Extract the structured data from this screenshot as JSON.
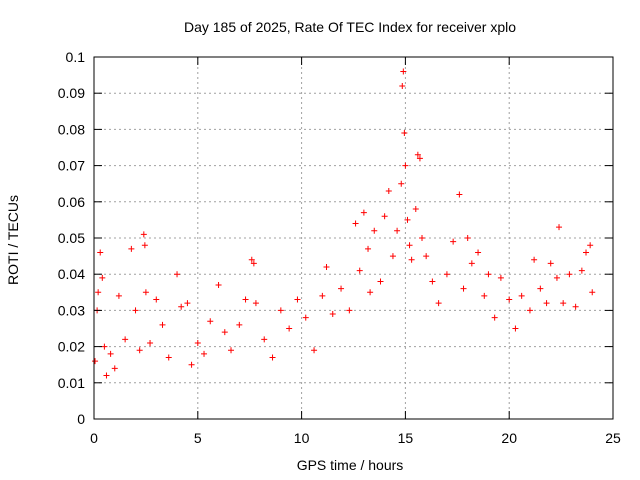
{
  "chart_data": {
    "type": "scatter",
    "title": "Day 185 of 2025, Rate Of TEC Index for receiver xplo",
    "xlabel": "GPS time / hours",
    "ylabel": "ROTI / TECUs",
    "xlim": [
      0,
      25
    ],
    "ylim": [
      0,
      0.1
    ],
    "xticks": [
      0,
      5,
      10,
      15,
      20,
      25
    ],
    "xtick_labels": [
      "0",
      "5",
      "10",
      "15",
      "20",
      "25"
    ],
    "yticks": [
      0,
      0.01,
      0.02,
      0.03,
      0.04,
      0.05,
      0.06,
      0.07,
      0.08,
      0.09,
      0.1
    ],
    "ytick_labels": [
      "0",
      "0.01",
      "0.02",
      "0.03",
      "0.04",
      "0.05",
      "0.06",
      "0.07",
      "0.08",
      "0.09",
      "0.1"
    ],
    "grid": true,
    "marker": "plus",
    "marker_color": "#ff0000",
    "series": [
      {
        "x": [
          0.05,
          0.15,
          0.2,
          0.3,
          0.4,
          0.5,
          0.6,
          0.8,
          1.0,
          1.2,
          1.5,
          1.8,
          2.0,
          2.2,
          2.4,
          2.45,
          2.5,
          2.7,
          3.0,
          3.3,
          3.6,
          4.0,
          4.2,
          4.5,
          4.7,
          5.0,
          5.3,
          5.6,
          6.0,
          6.3,
          6.6,
          7.0,
          7.3,
          7.6,
          7.7,
          7.8,
          8.2,
          8.6,
          9.0,
          9.4,
          9.8,
          10.2,
          10.6,
          11.0,
          11.2,
          11.5,
          11.9,
          12.3,
          12.6,
          12.8,
          13.0,
          13.2,
          13.3,
          13.5,
          13.8,
          14.0,
          14.2,
          14.4,
          14.6,
          14.8,
          14.85,
          14.9,
          14.95,
          15.0,
          15.1,
          15.2,
          15.3,
          15.5,
          15.6,
          15.7,
          15.8,
          16.0,
          16.3,
          16.6,
          17.0,
          17.3,
          17.6,
          17.8,
          18.0,
          18.2,
          18.5,
          18.8,
          19.0,
          19.3,
          19.6,
          20.0,
          20.3,
          20.6,
          21.0,
          21.2,
          21.5,
          21.8,
          22.0,
          22.3,
          22.4,
          22.6,
          22.9,
          23.2,
          23.5,
          23.7,
          23.9,
          24.0
        ],
        "y": [
          0.016,
          0.03,
          0.035,
          0.046,
          0.039,
          0.02,
          0.012,
          0.018,
          0.014,
          0.034,
          0.022,
          0.047,
          0.03,
          0.019,
          0.051,
          0.048,
          0.035,
          0.021,
          0.033,
          0.026,
          0.017,
          0.04,
          0.031,
          0.032,
          0.015,
          0.021,
          0.018,
          0.027,
          0.037,
          0.024,
          0.019,
          0.026,
          0.033,
          0.044,
          0.043,
          0.032,
          0.022,
          0.017,
          0.03,
          0.025,
          0.033,
          0.028,
          0.019,
          0.034,
          0.042,
          0.029,
          0.036,
          0.03,
          0.054,
          0.041,
          0.057,
          0.047,
          0.035,
          0.052,
          0.038,
          0.056,
          0.063,
          0.045,
          0.052,
          0.065,
          0.092,
          0.096,
          0.079,
          0.07,
          0.055,
          0.048,
          0.044,
          0.058,
          0.073,
          0.072,
          0.05,
          0.045,
          0.038,
          0.032,
          0.04,
          0.049,
          0.062,
          0.036,
          0.05,
          0.043,
          0.046,
          0.034,
          0.04,
          0.028,
          0.039,
          0.033,
          0.025,
          0.034,
          0.03,
          0.044,
          0.036,
          0.032,
          0.043,
          0.039,
          0.053,
          0.032,
          0.04,
          0.031,
          0.041,
          0.046,
          0.048,
          0.035
        ]
      }
    ]
  }
}
